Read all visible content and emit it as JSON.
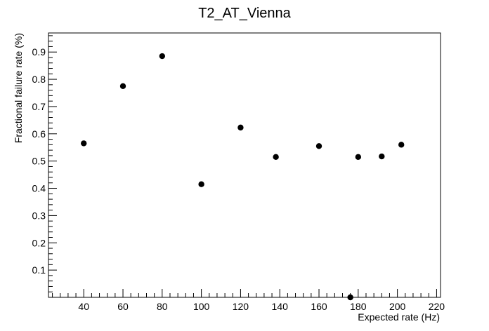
{
  "chart_data": {
    "type": "scatter",
    "title": "T2_AT_Vienna",
    "xlabel": "Expected rate (Hz)",
    "ylabel": "Fractional failure rate (%)",
    "xlim": [
      22,
      222
    ],
    "ylim": [
      0.0,
      0.97
    ],
    "x_ticks": [
      40,
      60,
      80,
      100,
      120,
      140,
      160,
      180,
      200,
      220
    ],
    "x_tick_labels": [
      "40",
      "60",
      "80",
      "100",
      "120",
      "140",
      "160",
      "180",
      "200",
      "220"
    ],
    "y_ticks": [
      0.1,
      0.2,
      0.3,
      0.4,
      0.5,
      0.6,
      0.7,
      0.8,
      0.9
    ],
    "y_tick_labels": [
      "0.1",
      "0.2",
      "0.3",
      "0.4",
      "0.5",
      "0.6",
      "0.7",
      "0.8",
      "0.9"
    ],
    "grid": false,
    "marker_color": "#000000",
    "points": [
      {
        "x": 40,
        "y": 0.565
      },
      {
        "x": 60,
        "y": 0.775
      },
      {
        "x": 80,
        "y": 0.885
      },
      {
        "x": 100,
        "y": 0.415
      },
      {
        "x": 120,
        "y": 0.623
      },
      {
        "x": 138,
        "y": 0.515
      },
      {
        "x": 160,
        "y": 0.555
      },
      {
        "x": 176,
        "y": 0.0
      },
      {
        "x": 180,
        "y": 0.515
      },
      {
        "x": 192,
        "y": 0.517
      },
      {
        "x": 202,
        "y": 0.56
      }
    ]
  }
}
